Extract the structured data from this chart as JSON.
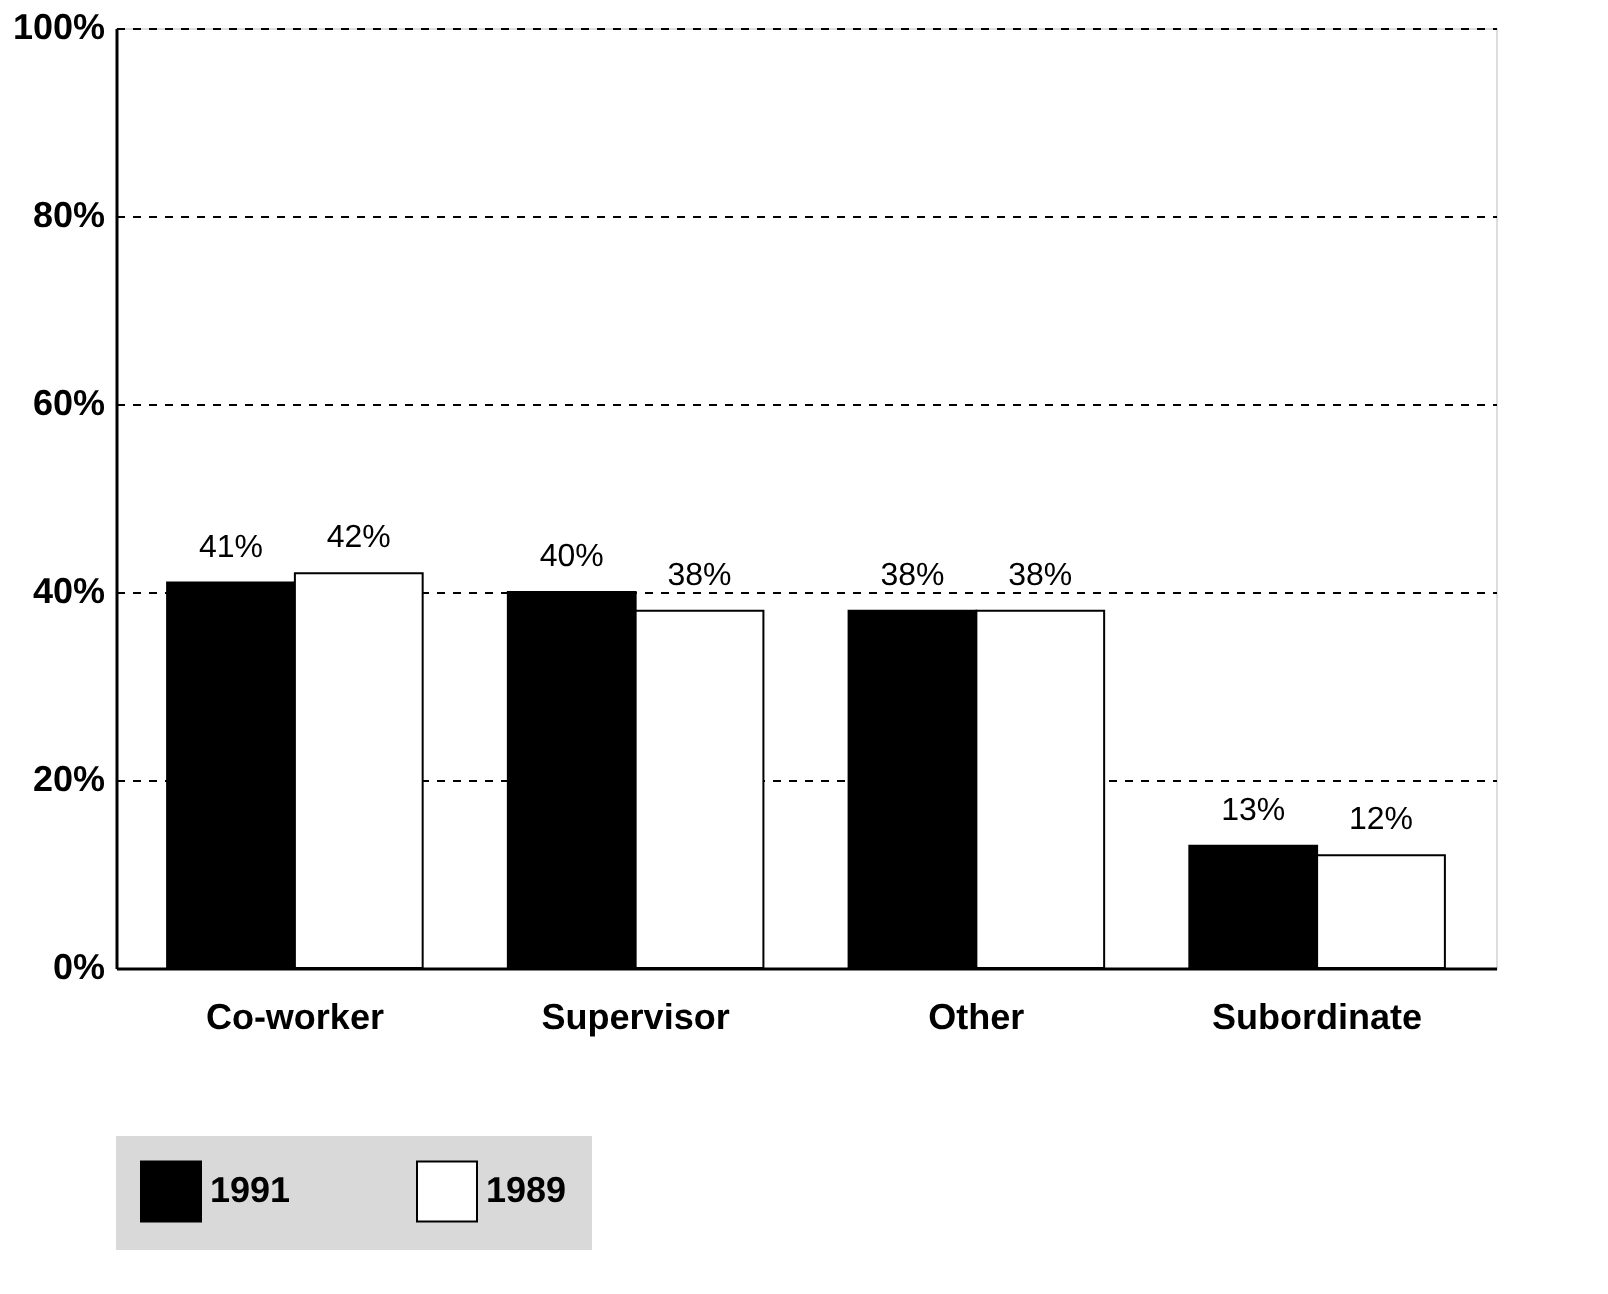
{
  "chart_data": {
    "type": "bar",
    "categories": [
      "Co-worker",
      "Supervisor",
      "Other",
      "Subordinate"
    ],
    "series": [
      {
        "name": "1991",
        "color": "#000000",
        "values": [
          41,
          40,
          38,
          13
        ]
      },
      {
        "name": "1989",
        "color": "#ffffff",
        "values": [
          42,
          38,
          38,
          12
        ]
      }
    ],
    "ylim": [
      0,
      100
    ],
    "yticks": [
      {
        "value": 0,
        "label": "0%"
      },
      {
        "value": 20,
        "label": "20%"
      },
      {
        "value": 40,
        "label": "40%"
      },
      {
        "value": 60,
        "label": "60%"
      },
      {
        "value": 80,
        "label": "80%"
      },
      {
        "value": 100,
        "label": "100%"
      }
    ],
    "value_labels": [
      [
        "41%",
        "40%",
        "38%",
        "13%"
      ],
      [
        "42%",
        "38%",
        "38%",
        "12%"
      ]
    ],
    "grid": "y",
    "line_style": "dashed",
    "legend": "bottom"
  }
}
